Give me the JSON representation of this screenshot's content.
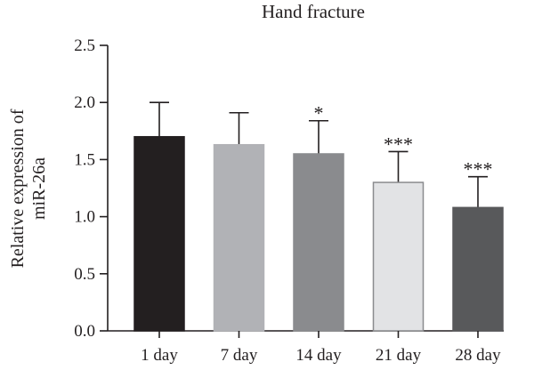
{
  "chart_data": {
    "type": "bar",
    "title": "Hand fracture",
    "ylabel_lines": [
      "Relative expression of",
      "miR-26a"
    ],
    "xlabel": "",
    "categories": [
      "1 day",
      "7 day",
      "14 day",
      "21 day",
      "28 day"
    ],
    "values": [
      1.7,
      1.63,
      1.55,
      1.3,
      1.08
    ],
    "error_plus": [
      0.3,
      0.28,
      0.29,
      0.27,
      0.27
    ],
    "annotations": [
      "",
      "",
      "*",
      "***",
      "***"
    ],
    "bar_colors": [
      "#231f20",
      "#b1b2b6",
      "#8a8b8e",
      "#e2e3e5",
      "#58595b"
    ],
    "ylim": [
      0,
      2.5
    ],
    "yticks": [
      "0.0",
      "0.5",
      "1.0",
      "1.5",
      "2.0",
      "2.5"
    ],
    "ytick_values": [
      0,
      0.5,
      1.0,
      1.5,
      2.0,
      2.5
    ],
    "grid": false,
    "legend": "none"
  }
}
